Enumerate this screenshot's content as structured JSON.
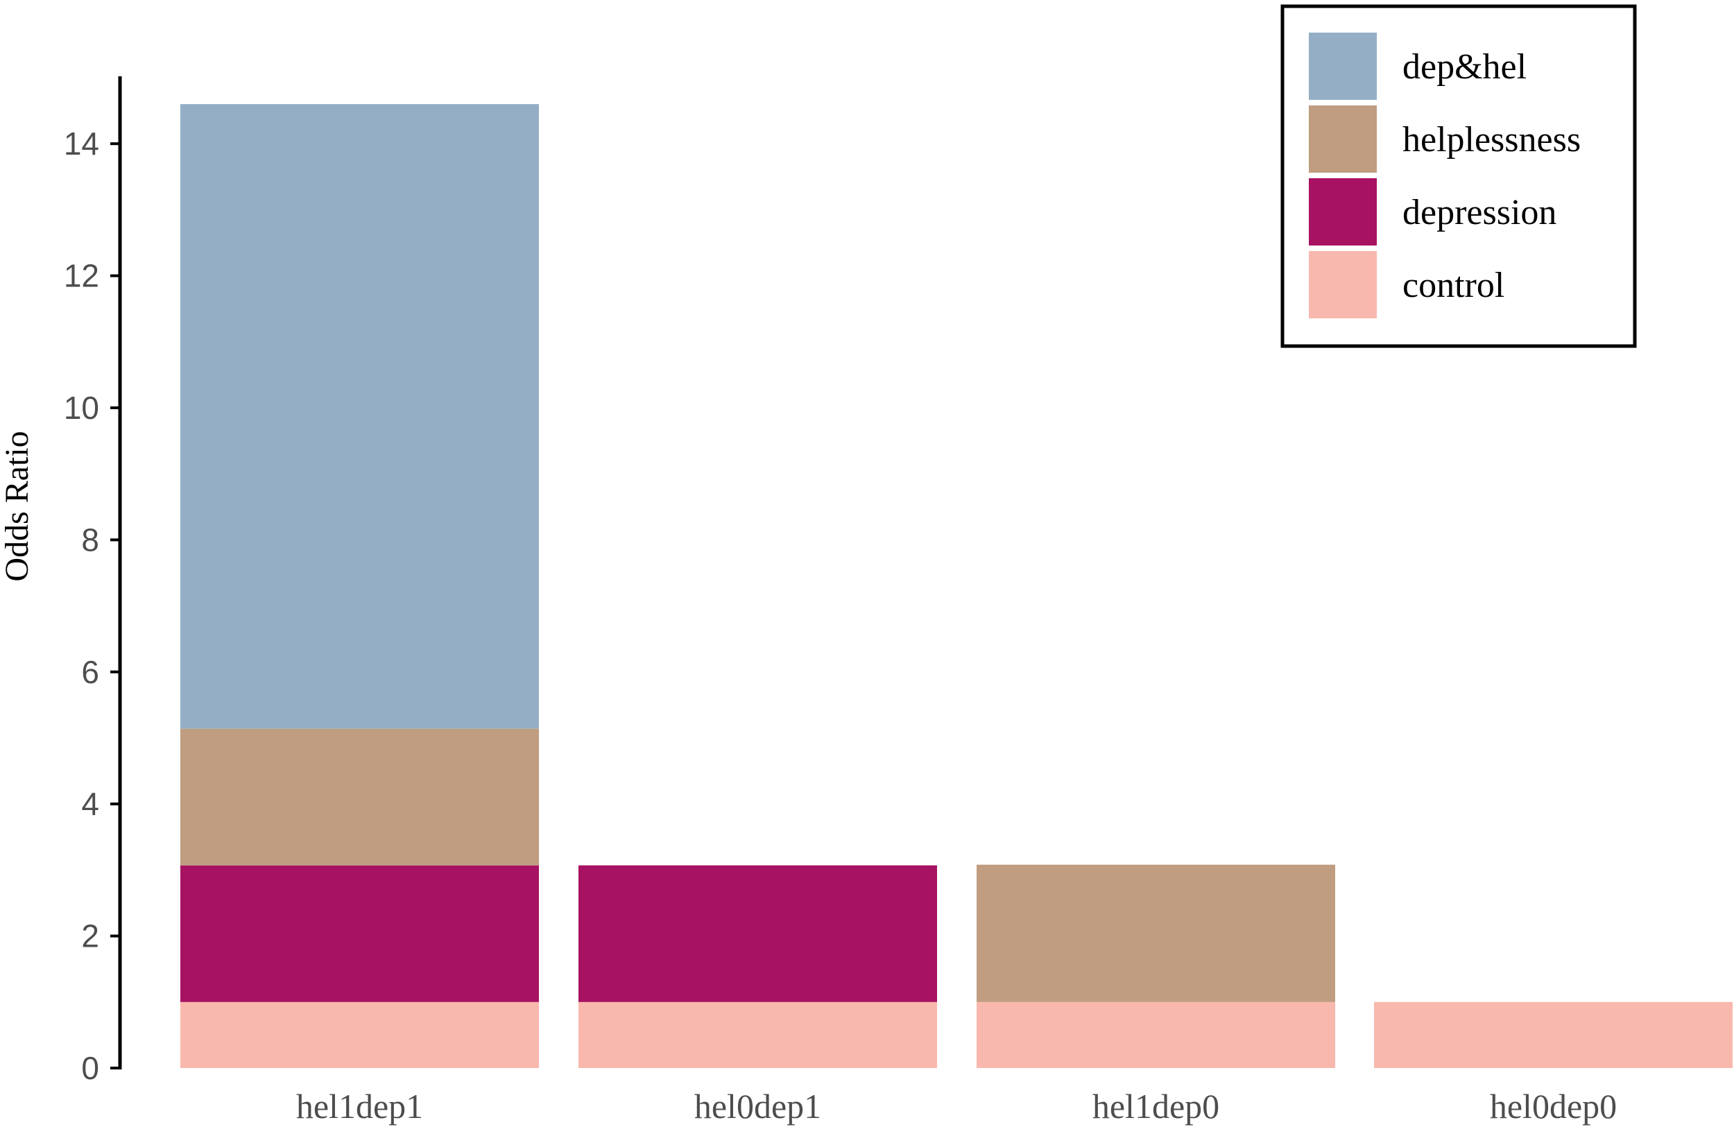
{
  "chart_data": {
    "type": "bar",
    "stacked": true,
    "categories": [
      "hel1dep1",
      "hel0dep1",
      "hel1dep0",
      "hel0dep0"
    ],
    "ylabel": "Odds Ratio",
    "xlabel": "",
    "ylim": [
      0,
      15
    ],
    "yticks": [
      0,
      2,
      4,
      6,
      8,
      10,
      12,
      14
    ],
    "grid": false,
    "legend_position": "top-right",
    "series": [
      {
        "name": "control",
        "color": "#F9B8AD",
        "values": [
          1.0,
          1.0,
          1.0,
          1.0
        ]
      },
      {
        "name": "depression",
        "color": "#A81262",
        "values": [
          2.07,
          2.07,
          0,
          0
        ]
      },
      {
        "name": "helplessness",
        "color": "#C09D80",
        "values": [
          2.07,
          0,
          2.08,
          0
        ]
      },
      {
        "name": "dep&hel",
        "color": "#94AFC5",
        "values": [
          9.46,
          0,
          0,
          0
        ]
      }
    ],
    "legend_order": [
      "dep&hel",
      "helplessness",
      "depression",
      "control"
    ]
  }
}
